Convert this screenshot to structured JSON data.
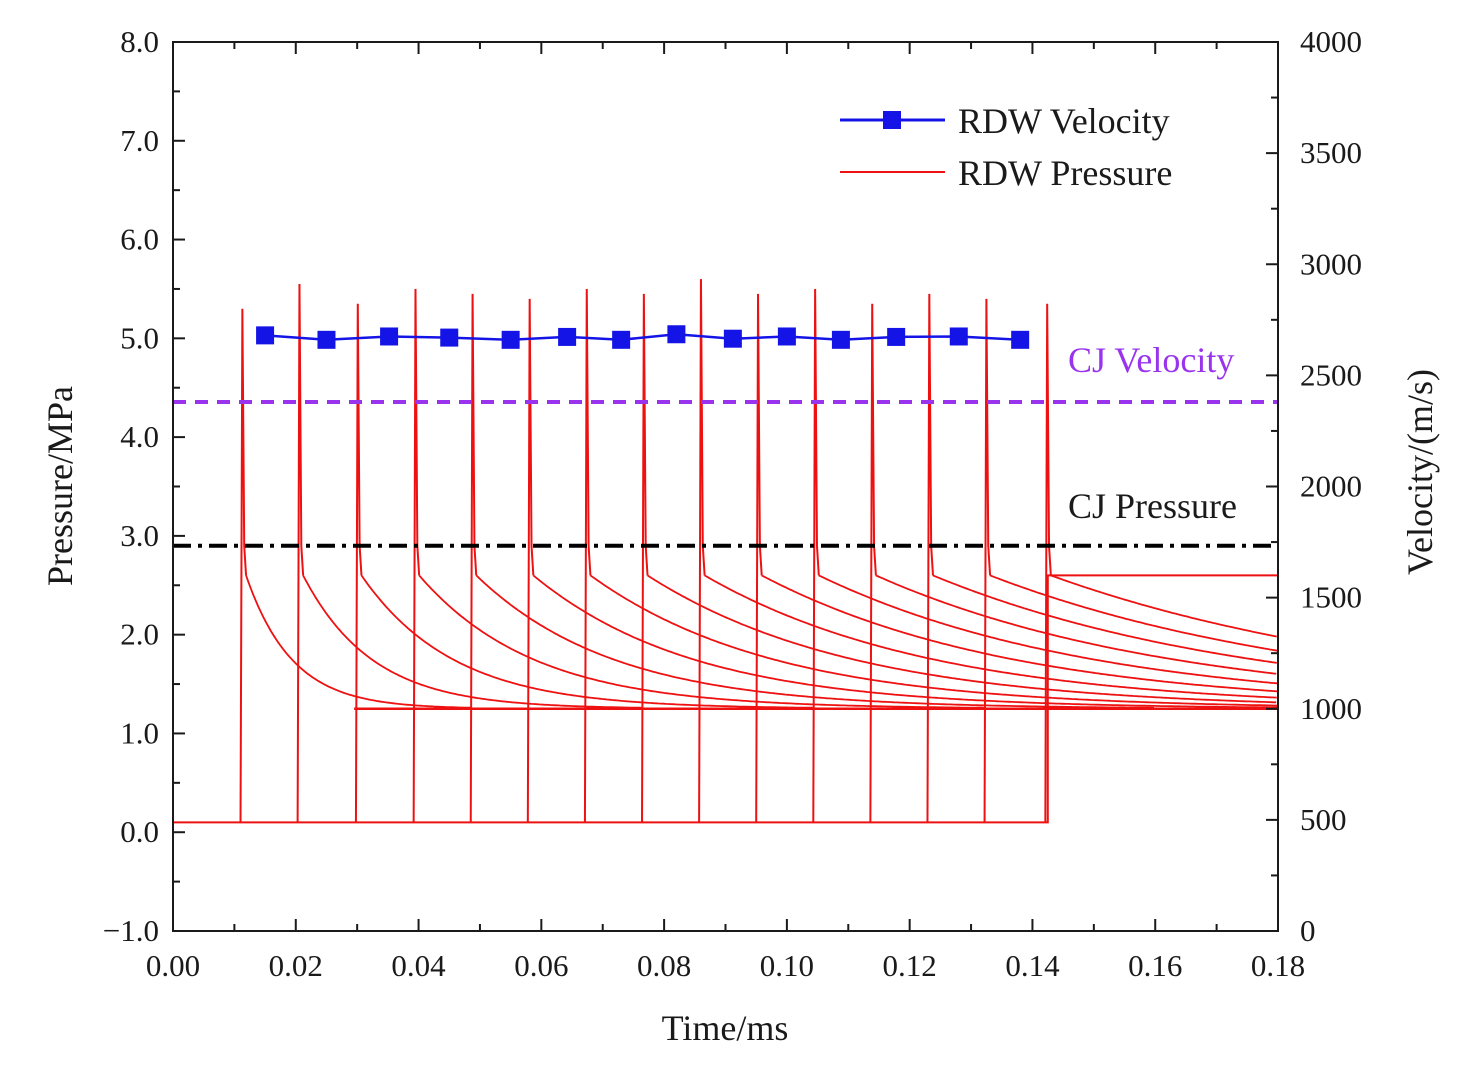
{
  "chart_data": {
    "type": "line",
    "xlabel": "Time/ms",
    "ylabel_left": "Pressure/MPa",
    "ylabel_right": "Velocity/(m/s)",
    "xlim": [
      0.0,
      0.18
    ],
    "ylim_left": [
      -1.0,
      8.0
    ],
    "ylim_right": [
      0,
      4000
    ],
    "x_ticks": [
      "0.00",
      "0.02",
      "0.04",
      "0.06",
      "0.08",
      "0.10",
      "0.12",
      "0.14",
      "0.16",
      "0.18"
    ],
    "y_left_ticks": [
      "−1.0",
      "0.0",
      "1.0",
      "2.0",
      "3.0",
      "4.0",
      "5.0",
      "6.0",
      "7.0",
      "8.0"
    ],
    "y_right_ticks": [
      "0",
      "500",
      "1000",
      "1500",
      "2000",
      "2500",
      "3000",
      "3500",
      "4000"
    ],
    "legend": {
      "position": "top-right",
      "velocity_label": "RDW Velocity",
      "pressure_label": "RDW Pressure"
    },
    "annotations": {
      "cj_velocity_label": "CJ Velocity",
      "cj_pressure_label": "CJ Pressure"
    },
    "reference_lines": {
      "cj_velocity": 2380,
      "cj_pressure": 2.9
    },
    "colors": {
      "velocity": "#1414e6",
      "pressure": "#ee1111",
      "cj_velocity": "#9933ee",
      "cj_pressure": "#000000",
      "axis": "#1a1a1a"
    },
    "velocity_series": {
      "name": "RDW Velocity",
      "x": [
        0.015,
        0.025,
        0.0352,
        0.045,
        0.055,
        0.0642,
        0.073,
        0.082,
        0.0912,
        0.1,
        0.1088,
        0.1178,
        0.128,
        0.138
      ],
      "y": [
        2680,
        2660,
        2675,
        2670,
        2660,
        2673,
        2660,
        2685,
        2665,
        2675,
        2660,
        2673,
        2675,
        2660
      ]
    },
    "pressure_series": {
      "name": "RDW Pressure",
      "baseline": 0.1,
      "plateau": 1.25,
      "front_plateau": 2.6,
      "front_start": 0.1425,
      "spikes": [
        {
          "t": 0.011,
          "peak": 5.3
        },
        {
          "t": 0.0203,
          "peak": 5.55
        },
        {
          "t": 0.0298,
          "peak": 5.35
        },
        {
          "t": 0.0392,
          "peak": 5.5
        },
        {
          "t": 0.0485,
          "peak": 5.45
        },
        {
          "t": 0.0578,
          "peak": 5.4
        },
        {
          "t": 0.0671,
          "peak": 5.5
        },
        {
          "t": 0.0764,
          "peak": 5.45
        },
        {
          "t": 0.0857,
          "peak": 5.6
        },
        {
          "t": 0.095,
          "peak": 5.45
        },
        {
          "t": 0.1043,
          "peak": 5.5
        },
        {
          "t": 0.1136,
          "peak": 5.35
        },
        {
          "t": 0.1229,
          "peak": 5.45
        },
        {
          "t": 0.1322,
          "peak": 5.4
        },
        {
          "t": 0.1421,
          "peak": 5.35
        }
      ]
    }
  }
}
